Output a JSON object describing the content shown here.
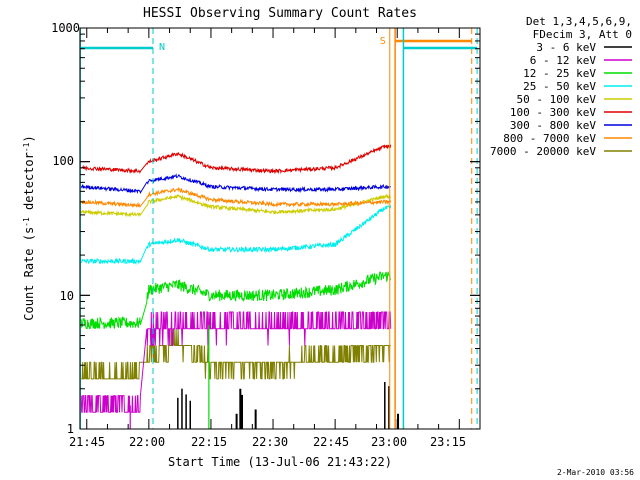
{
  "chart_data": {
    "type": "line",
    "title": "HESSI Observing Summary Count Rates",
    "xlabel": "Start Time (13-Jul-06 21:43:22)",
    "ylabel_main": "Count Rate (s",
    "ylabel_sup1": "-1",
    "ylabel_mid": " detector",
    "ylabel_sup2": "-1",
    "ylabel_end": ")",
    "yscale": "log",
    "ylim": [
      1,
      1000
    ],
    "xlim": [
      "21:43:22",
      "23:20:00"
    ],
    "x_tick_labels": [
      "21:45",
      "22:00",
      "22:15",
      "22:30",
      "22:45",
      "23:00",
      "23:15"
    ],
    "y_tick_labels": [
      "1",
      "10",
      "100",
      "1000"
    ],
    "legend_header": [
      "Det 1,3,4,5,6,9,",
      "FDecim 3, Att 0"
    ],
    "legend_position": "right",
    "series": [
      {
        "name": "3 - 6 keV",
        "color": "#000000"
      },
      {
        "name": "6 - 12 keV",
        "color": "#cc00cc"
      },
      {
        "name": "12 - 25 keV",
        "color": "#00dd00"
      },
      {
        "name": "25 - 50 keV",
        "color": "#00eeee"
      },
      {
        "name": "50 - 100 keV",
        "color": "#cccc00"
      },
      {
        "name": "100 - 300 keV",
        "color": "#dd0000"
      },
      {
        "name": "300 - 800 keV",
        "color": "#0000dd"
      },
      {
        "name": "800 - 7000 keV",
        "color": "#ff8800"
      },
      {
        "name": "7000 - 20000 keV",
        "color": "#808000"
      }
    ],
    "approx_values": {
      "x": [
        "21:44",
        "21:58",
        "22:00",
        "22:07",
        "22:15",
        "22:30",
        "22:45",
        "22:57"
      ],
      "100 - 300 keV": [
        90,
        85,
        100,
        115,
        90,
        85,
        90,
        130
      ],
      "300 - 800 keV": [
        65,
        60,
        72,
        78,
        65,
        62,
        62,
        65
      ],
      "800 - 7000 keV": [
        50,
        47,
        57,
        62,
        52,
        48,
        48,
        50
      ],
      "50 - 100 keV": [
        42,
        40,
        50,
        55,
        46,
        42,
        44,
        55
      ],
      "25 - 50 keV": [
        18,
        18,
        24,
        26,
        22,
        22,
        24,
        45
      ],
      "12 - 25 keV": [
        6.2,
        6.2,
        11,
        12,
        10,
        10,
        11,
        14
      ],
      "6 - 12 keV": [
        1.5,
        1.5,
        5.8,
        6,
        6,
        6,
        6,
        6.5
      ],
      "7000 - 20000 keV": [
        2.5,
        2.5,
        3.5,
        4.5,
        3,
        3,
        3.5,
        4
      ]
    },
    "markers": [
      {
        "label": "N",
        "color": "#00cccc"
      },
      {
        "label": "S",
        "color": "#ff8800"
      }
    ]
  },
  "footer": {
    "date": "2-Mar-2010 03:56"
  }
}
